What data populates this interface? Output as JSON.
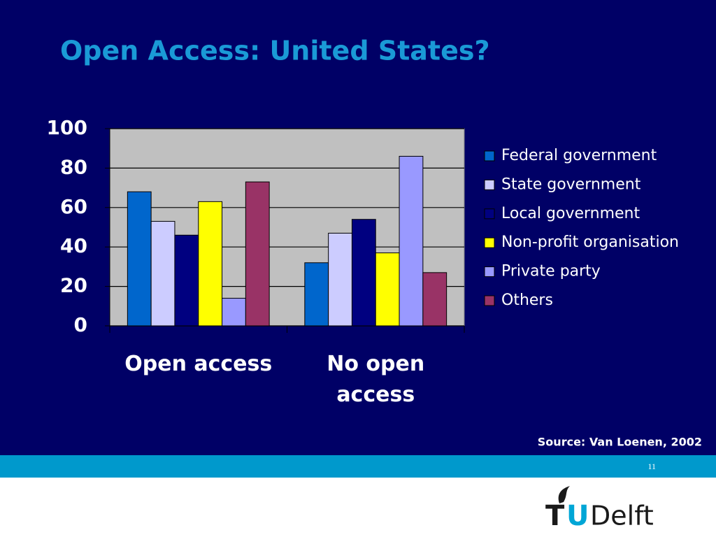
{
  "chart_data": {
    "type": "bar",
    "title": "Open Access: United States?",
    "categories": [
      "Open access",
      "No open access"
    ],
    "series": [
      {
        "name": "Federal government",
        "color": "#0066cc",
        "values": [
          68,
          32
        ]
      },
      {
        "name": "State government",
        "color": "#ccccff",
        "values": [
          53,
          47
        ]
      },
      {
        "name": "Local government",
        "color": "#000080",
        "values": [
          46,
          54
        ]
      },
      {
        "name": "Non-profit organisation",
        "color": "#ffff00",
        "values": [
          63,
          37
        ]
      },
      {
        "name": "Private party",
        "color": "#9999ff",
        "values": [
          14,
          86
        ]
      },
      {
        "name": "Others",
        "color": "#993366",
        "values": [
          73,
          27
        ]
      }
    ],
    "ylim": [
      0,
      100
    ],
    "yticks": [
      0,
      20,
      40,
      60,
      80,
      100
    ],
    "grid": true,
    "legend": "right",
    "source": "Source: Van Loenen, 2002"
  },
  "slide": {
    "page_number": "11",
    "logo": {
      "first": "T",
      "accent": "U",
      "rest": "Delft"
    }
  }
}
